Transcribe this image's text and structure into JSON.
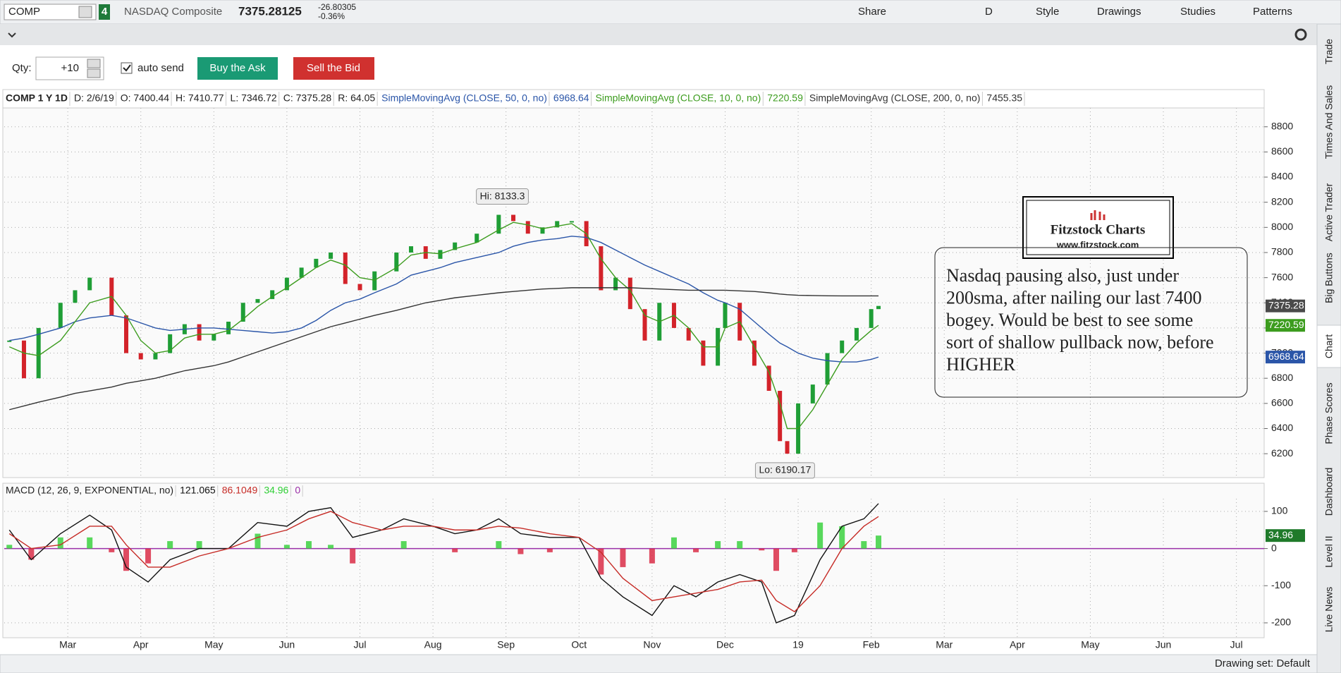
{
  "toolbar": {
    "symbol": "COMP",
    "link": "4",
    "description": "NASDAQ Composite",
    "last": "7375.28125",
    "change": "-26.80305",
    "change_pct": "-0.36%",
    "buttons": [
      "Share",
      "D",
      "Style",
      "Drawings",
      "Studies",
      "Patterns"
    ]
  },
  "order": {
    "qty_label": "Qty:",
    "qty": "+10",
    "auto_send": "auto send",
    "buy": "Buy the Ask",
    "sell": "Sell the Bid"
  },
  "sidebar": [
    "Trade",
    "Times And Sales",
    "Active Trader",
    "Big Buttons",
    "Chart",
    "Phase Scores",
    "Dashboard",
    "Level II",
    "Live News"
  ],
  "footer": {
    "drawing_set": "Drawing set: Default"
  },
  "chart_data": [
    {
      "type": "candlestick",
      "header": [
        "COMP 1 Y 1D",
        "D: 2/6/19",
        "O: 7400.44",
        "H: 7410.77",
        "L: 7346.72",
        "C: 7375.28",
        "R: 64.05"
      ],
      "x": [
        2.2,
        2.4,
        2.6,
        2.9,
        3.1,
        3.3,
        3.6,
        3.8,
        4.0,
        4.2,
        4.4,
        4.6,
        4.8,
        5.0,
        5.2,
        5.4,
        5.6,
        5.8,
        6.0,
        6.2,
        6.4,
        6.6,
        6.8,
        7.0,
        7.2,
        7.5,
        7.7,
        7.9,
        8.1,
        8.3,
        8.6,
        8.9,
        9.1,
        9.3,
        9.5,
        9.7,
        9.9,
        10.1,
        10.3,
        10.5,
        10.7,
        10.9,
        11.1,
        11.3,
        11.5,
        11.7,
        11.9,
        12.0,
        12.2,
        12.4,
        12.6,
        12.75,
        12.85,
        13.0,
        13.2,
        13.4,
        13.6,
        13.8,
        14.0,
        14.1
      ],
      "series": [
        {
          "color": "#1f9e36",
          "down_color": "#d3232a",
          "badge": true,
          "badge_color": "#4a4a4a",
          "values": [
            7100,
            6800,
            7200,
            7400,
            7500,
            7600,
            7300,
            7000,
            6950,
            7000,
            7150,
            7230,
            7100,
            7150,
            7250,
            7400,
            7430,
            7500,
            7600,
            7680,
            7750,
            7800,
            7550,
            7500,
            7650,
            7800,
            7850,
            7750,
            7820,
            7880,
            7950,
            8100,
            8050,
            7950,
            8000,
            8050,
            8050,
            7850,
            7500,
            7600,
            7350,
            7100,
            7400,
            7200,
            7100,
            6900,
            7200,
            7400,
            7100,
            6900,
            6700,
            6300,
            6200,
            6600,
            6750,
            7000,
            7100,
            7200,
            7350,
            7375.28
          ]
        },
        {
          "name": "SimpleMovingAvg (CLOSE, 50, 0, no)",
          "color": "#2a55a8",
          "badge": true,
          "values": [
            7100,
            7120,
            7150,
            7200,
            7250,
            7280,
            7300,
            7280,
            7240,
            7200,
            7180,
            7190,
            7200,
            7200,
            7190,
            7180,
            7170,
            7160,
            7170,
            7200,
            7260,
            7340,
            7400,
            7430,
            7480,
            7550,
            7620,
            7650,
            7680,
            7720,
            7760,
            7800,
            7850,
            7880,
            7900,
            7910,
            7930,
            7920,
            7880,
            7820,
            7760,
            7700,
            7650,
            7600,
            7550,
            7480,
            7420,
            7400,
            7350,
            7250,
            7150,
            7080,
            7050,
            7000,
            6960,
            6940,
            6930,
            6930,
            6950,
            6968.64
          ]
        },
        {
          "name": "SimpleMovingAvg (CLOSE, 10, 0, no)",
          "color": "#3c9c1e",
          "badge": true,
          "values": [
            7050,
            7000,
            6980,
            7100,
            7250,
            7400,
            7450,
            7300,
            7100,
            7000,
            7020,
            7120,
            7150,
            7150,
            7180,
            7270,
            7370,
            7450,
            7520,
            7600,
            7680,
            7740,
            7700,
            7600,
            7580,
            7680,
            7780,
            7800,
            7790,
            7830,
            7880,
            7980,
            8040,
            8020,
            7990,
            8010,
            8030,
            7950,
            7750,
            7600,
            7500,
            7300,
            7250,
            7300,
            7200,
            7050,
            7050,
            7200,
            7250,
            7050,
            6850,
            6600,
            6400,
            6400,
            6550,
            6750,
            6950,
            7080,
            7180,
            7220.59
          ]
        },
        {
          "name": "SimpleMovingAvg (CLOSE, 200, 0, no)",
          "color": "#333333",
          "badge": false,
          "values": [
            6550,
            6580,
            6610,
            6650,
            6680,
            6700,
            6730,
            6760,
            6780,
            6800,
            6830,
            6860,
            6880,
            6900,
            6930,
            6970,
            7010,
            7050,
            7090,
            7130,
            7170,
            7210,
            7240,
            7270,
            7300,
            7340,
            7370,
            7400,
            7420,
            7440,
            7460,
            7480,
            7490,
            7500,
            7510,
            7515,
            7520,
            7520,
            7520,
            7520,
            7520,
            7515,
            7510,
            7505,
            7500,
            7500,
            7500,
            7500,
            7495,
            7490,
            7480,
            7470,
            7465,
            7460,
            7458,
            7456,
            7455,
            7455,
            7455,
            7455.35
          ]
        }
      ],
      "xlim": [
        2.13,
        19.38
      ],
      "ylim": [
        6010,
        8950
      ],
      "yticks": [
        6200,
        6400,
        6600,
        6800,
        7000,
        7200,
        7400,
        7600,
        7800,
        8000,
        8200,
        8400,
        8600,
        8800
      ],
      "grid": true,
      "annotations": [
        {
          "text": "Hi: 8133.3",
          "x": 8.95,
          "y": 8133.3
        },
        {
          "text": "Lo: 6190.17",
          "x": 12.82,
          "y": 6190.17
        }
      ],
      "note": {
        "logo_title": "Fitzstock Charts",
        "logo_url": "www.fitzstock.com",
        "lines": [
          "Nasdaq pausing also,  just under",
          "200sma, after nailing our  last 7400",
          "bogey.  Would be best to see some",
          "sort of shallow pullback now, before",
          "HIGHER"
        ]
      }
    },
    {
      "type": "line",
      "title": "MACD (12, 26, 9, EXPONENTIAL, no)",
      "header_extra": "0",
      "x": [
        2.2,
        2.5,
        2.9,
        3.3,
        3.6,
        3.8,
        4.1,
        4.4,
        4.8,
        5.2,
        5.6,
        6.0,
        6.3,
        6.6,
        6.9,
        7.3,
        7.6,
        8.0,
        8.3,
        8.6,
        8.9,
        9.2,
        9.6,
        10.0,
        10.3,
        10.6,
        11.0,
        11.3,
        11.6,
        11.9,
        12.2,
        12.5,
        12.7,
        12.95,
        13.3,
        13.6,
        13.9,
        14.1
      ],
      "series": [
        {
          "color": "#111111",
          "values": [
            50,
            -30,
            40,
            90,
            50,
            -50,
            -90,
            -30,
            0,
            0,
            70,
            60,
            100,
            110,
            30,
            50,
            80,
            60,
            40,
            50,
            80,
            40,
            30,
            30,
            -80,
            -130,
            -180,
            -100,
            -130,
            -90,
            -70,
            -90,
            -200,
            -180,
            -30,
            60,
            80,
            121.065
          ]
        },
        {
          "color": "#c62b26",
          "values": [
            40,
            0,
            10,
            60,
            60,
            10,
            -50,
            -50,
            -20,
            0,
            30,
            50,
            80,
            100,
            70,
            50,
            60,
            60,
            50,
            50,
            60,
            55,
            40,
            30,
            -10,
            -80,
            -140,
            -130,
            -120,
            -110,
            -90,
            -85,
            -140,
            -170,
            -100,
            0,
            60,
            86.1049
          ]
        },
        {
          "style": "histogram",
          "color": "#2fcf35",
          "down_color": "#d8203c",
          "badge": true,
          "values": [
            10,
            -30,
            30,
            30,
            -10,
            -60,
            -40,
            20,
            20,
            0,
            40,
            10,
            20,
            10,
            -40,
            0,
            20,
            0,
            -10,
            0,
            20,
            -15,
            -10,
            0,
            -70,
            -50,
            -40,
            30,
            -10,
            20,
            20,
            -5,
            -60,
            -10,
            70,
            60,
            20,
            34.96
          ]
        }
      ],
      "zero_line_color": "#9b2fa8",
      "xlim": [
        2.13,
        19.38
      ],
      "ylim": [
        -240,
        134
      ],
      "yticks": [
        100,
        0,
        -100,
        -200
      ],
      "grid": true,
      "xticks": [
        {
          "value": 3,
          "label": "Mar"
        },
        {
          "value": 4,
          "label": "Apr"
        },
        {
          "value": 5,
          "label": "May"
        },
        {
          "value": 6,
          "label": "Jun"
        },
        {
          "value": 7,
          "label": "Jul"
        },
        {
          "value": 8,
          "label": "Aug"
        },
        {
          "value": 9,
          "label": "Sep"
        },
        {
          "value": 10,
          "label": "Oct"
        },
        {
          "value": 11,
          "label": "Nov"
        },
        {
          "value": 12,
          "label": "Dec"
        },
        {
          "value": 13,
          "label": "19"
        },
        {
          "value": 14,
          "label": "Feb"
        },
        {
          "value": 15,
          "label": "Mar"
        },
        {
          "value": 16,
          "label": "Apr"
        },
        {
          "value": 17,
          "label": "May"
        },
        {
          "value": 18,
          "label": "Jun"
        },
        {
          "value": 19,
          "label": "Jul"
        }
      ]
    }
  ]
}
